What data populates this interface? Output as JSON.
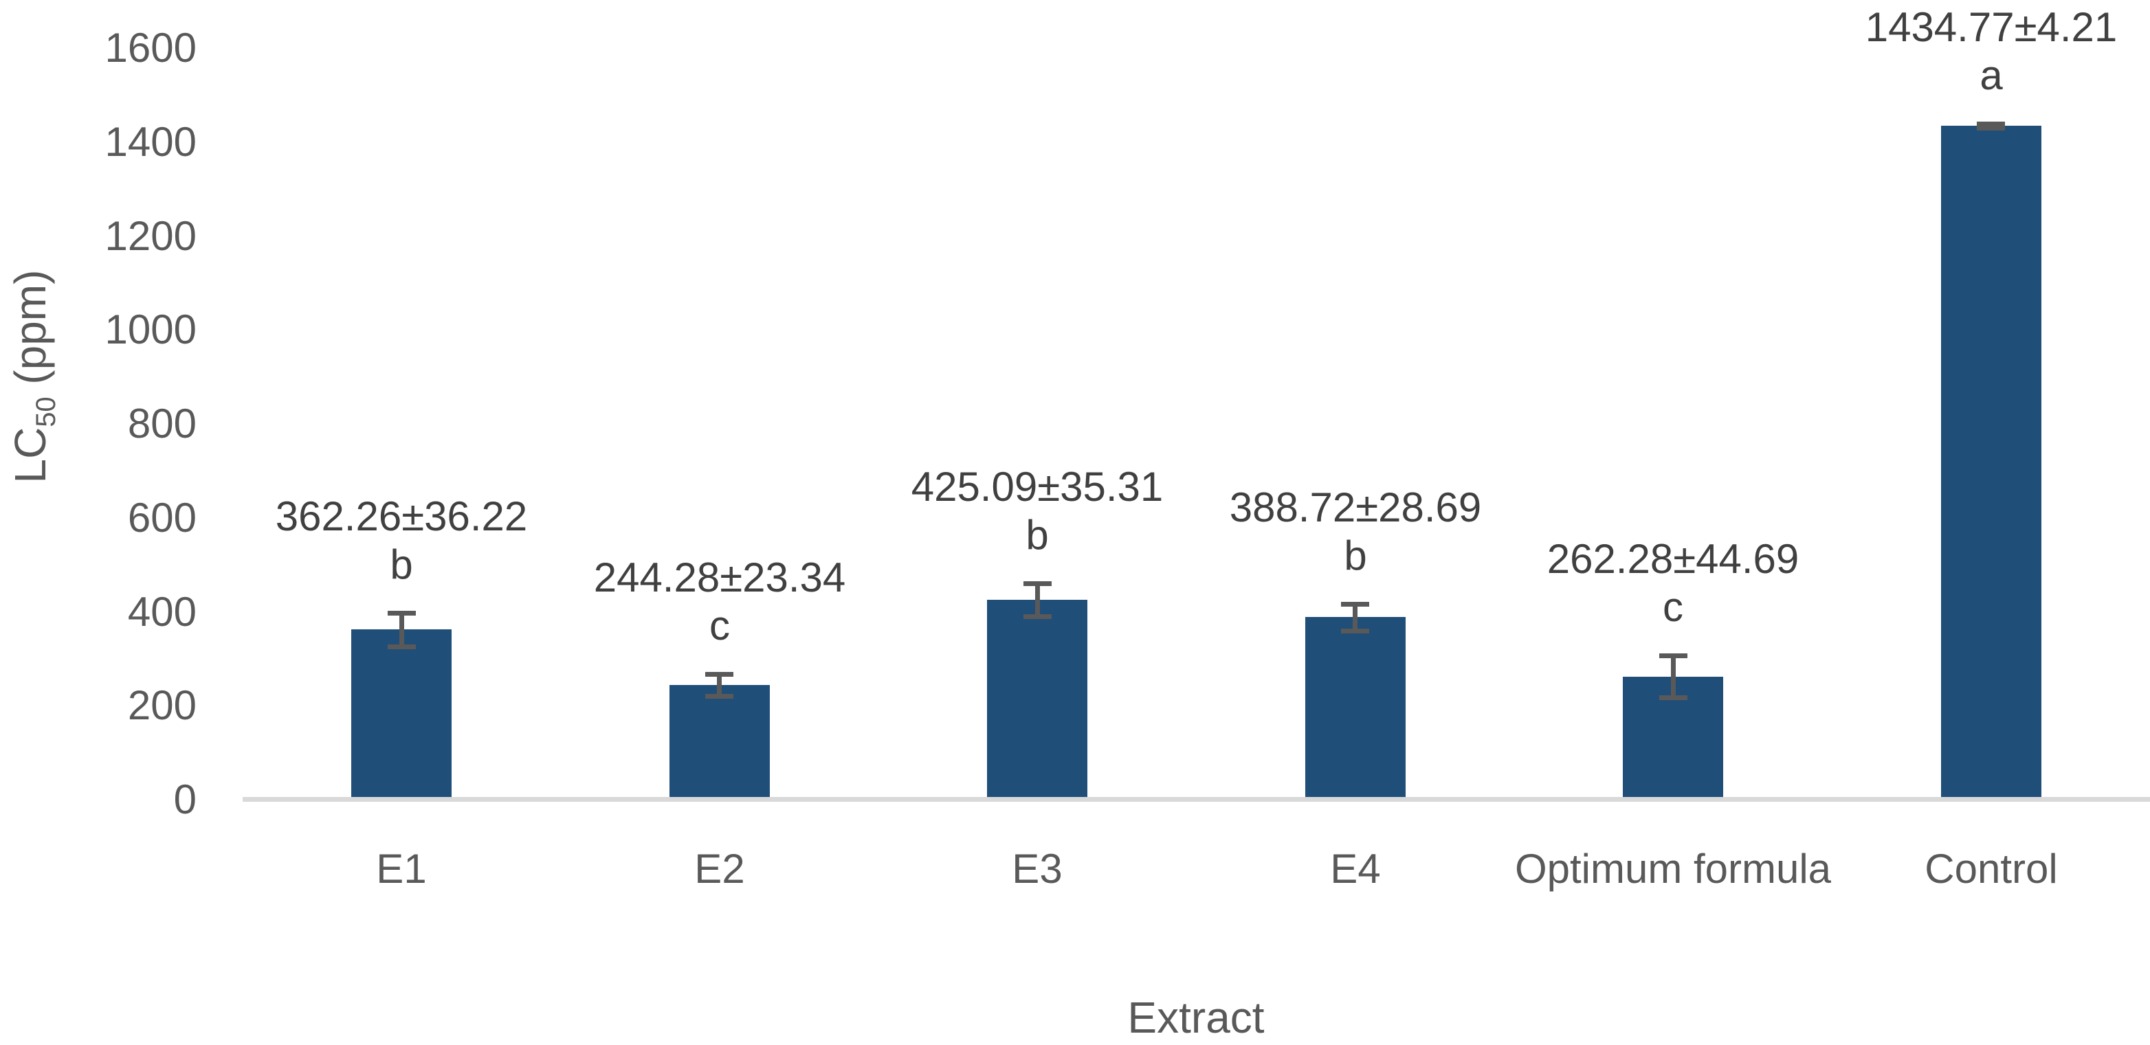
{
  "chart_data": {
    "type": "bar",
    "title": "",
    "xlabel": "Extract",
    "ylabel": "LC50 (ppm)",
    "ylabel_rich": {
      "prefix": "LC",
      "subscript": "50",
      "suffix": " (ppm)"
    },
    "categories": [
      "E1",
      "E2",
      "E3",
      "E4",
      "Optimum formula",
      "Control"
    ],
    "values": [
      362.26,
      244.28,
      425.09,
      388.72,
      262.28,
      1434.77
    ],
    "errors": [
      36.22,
      23.34,
      35.31,
      28.69,
      44.69,
      4.21
    ],
    "significance_letters": [
      "b",
      "c",
      "b",
      "b",
      "c",
      "a"
    ],
    "data_labels": [
      "362.26±36.22",
      "244.28±23.34",
      "425.09±35.31",
      "388.72±28.69",
      "262.28±44.69",
      "1434.77±4.21"
    ],
    "ylim": [
      0,
      1600
    ],
    "ytick_interval": 200,
    "ytick_labels": [
      "0",
      "200",
      "400",
      "600",
      "800",
      "1000",
      "1200",
      "1400",
      "1600"
    ],
    "gridlines": false,
    "legend": "none",
    "colors": {
      "bar": "#1F4E79",
      "error_bar": "#595959",
      "axis_line": "#D9D9D9",
      "tick_text": "#595959",
      "label_text": "#404040"
    }
  }
}
